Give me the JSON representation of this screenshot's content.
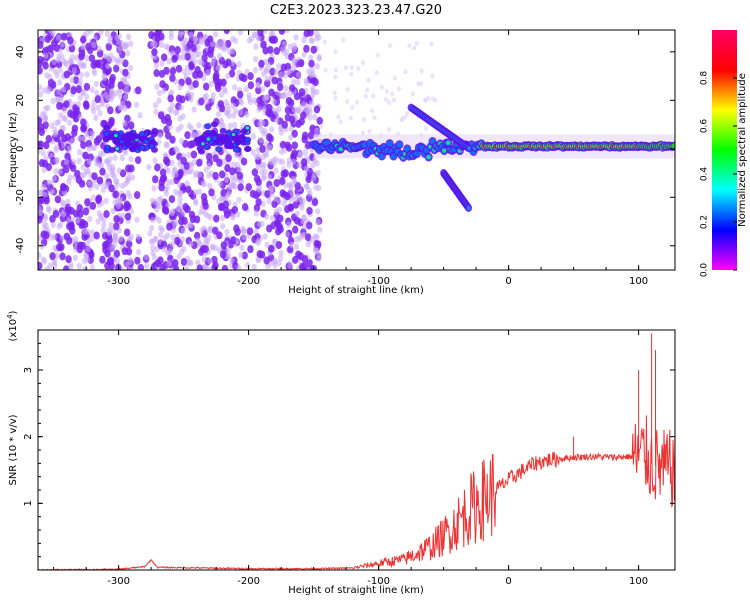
{
  "title": "C2E3.2023.323.23.47.G20",
  "chart_data": [
    {
      "type": "heatmap",
      "xlabel": "Height of straight line (km)",
      "ylabel": "Frequency (Hz)",
      "xlim": [
        -362,
        128
      ],
      "ylim": [
        -50,
        49
      ],
      "xticks": [
        "-300",
        "-200",
        "-100",
        "0",
        "100"
      ],
      "yticks": [
        "40",
        "20",
        "0",
        "-20",
        "-40"
      ],
      "colorbar": {
        "label": "Normalized spectral amplitude",
        "range": [
          0,
          1
        ],
        "ticks": [
          "0.0",
          "0.2",
          "0.4",
          "0.6",
          "0.8"
        ],
        "colormap": [
          "#ff0066",
          "#ff0000",
          "#ffff00",
          "#00ff00",
          "#00ffff",
          "#0000ff",
          "#ff00ff"
        ]
      },
      "features": [
        {
          "name": "broadband noise",
          "x": [
            -362,
            -145
          ],
          "y": [
            -50,
            49
          ],
          "amplitude": 0.05
        },
        {
          "name": "main trace",
          "x": [
            -150,
            128
          ],
          "y_center": 1,
          "amplitude_max": 0.9
        },
        {
          "name": "upper branch",
          "x": [
            -75,
            -30
          ],
          "y": [
            17,
            0
          ]
        },
        {
          "name": "lower branch",
          "x": [
            -50,
            -30
          ],
          "y": [
            -10,
            -25
          ]
        },
        {
          "name": "early cluster",
          "x": [
            -310,
            -270
          ],
          "y_center": 3
        },
        {
          "name": "mid cluster",
          "x": [
            -240,
            -200
          ],
          "y_center": 4
        }
      ]
    },
    {
      "type": "line",
      "xlabel": "Height of straight line (km)",
      "ylabel": "SNR (10 * v/v)",
      "yscale_label": "(x10^4)",
      "xlim": [
        -362,
        128
      ],
      "ylim": [
        0,
        3.6
      ],
      "xticks": [
        "-300",
        "-200",
        "-100",
        "0",
        "100"
      ],
      "yticks": [
        "3",
        "2",
        "1"
      ],
      "color": "#ee3333",
      "x": [
        -362,
        -300,
        -280,
        -275,
        -270,
        -200,
        -150,
        -120,
        -100,
        -80,
        -60,
        -50,
        -40,
        -30,
        -20,
        -10,
        0,
        10,
        20,
        30,
        40,
        50,
        60,
        70,
        80,
        90,
        100,
        105,
        110,
        115,
        120,
        128
      ],
      "y": [
        0.0,
        0.01,
        0.05,
        0.15,
        0.04,
        0.02,
        0.02,
        0.03,
        0.1,
        0.16,
        0.35,
        0.5,
        0.7,
        0.9,
        1.05,
        1.2,
        1.35,
        1.48,
        1.6,
        1.65,
        1.67,
        1.69,
        1.7,
        1.7,
        1.69,
        1.7,
        1.7,
        1.75,
        1.6,
        1.55,
        1.52,
        1.5
      ],
      "peaks": [
        {
          "x": 50,
          "y": 2.0
        },
        {
          "x": 100,
          "y": 3.0
        },
        {
          "x": 110,
          "y": 3.55
        },
        {
          "x": 113,
          "y": 3.3
        }
      ]
    }
  ]
}
